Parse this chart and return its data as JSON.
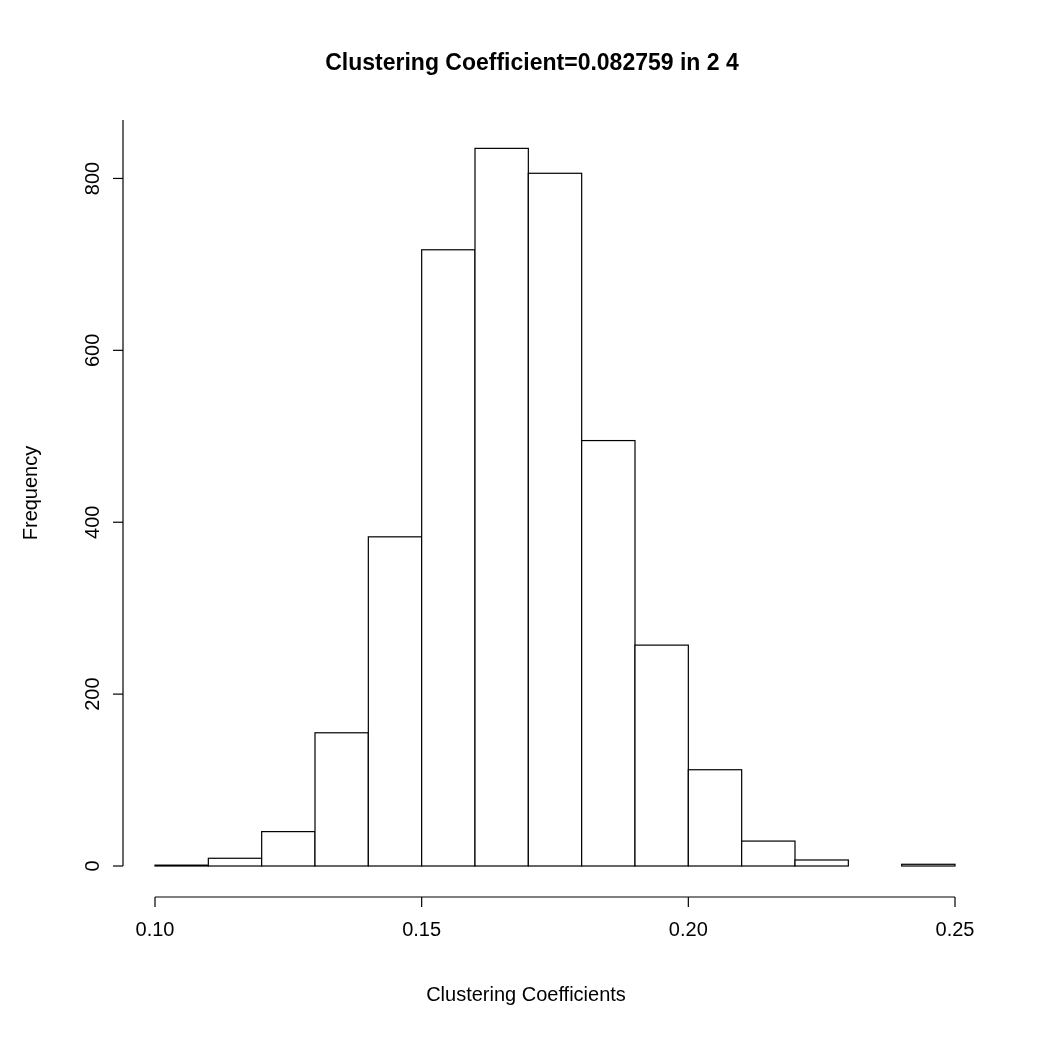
{
  "chart_data": {
    "type": "histogram",
    "title": "Clustering Coefficient=0.082759 in 2 4",
    "xlabel": "Clustering Coefficients",
    "ylabel": "Frequency",
    "bins": [
      0.1,
      0.11,
      0.12,
      0.13,
      0.14,
      0.15,
      0.16,
      0.17,
      0.18,
      0.19,
      0.2,
      0.21,
      0.22,
      0.23,
      0.24,
      0.25
    ],
    "values": [
      1,
      9,
      40,
      155,
      383,
      717,
      835,
      806,
      495,
      257,
      112,
      29,
      7,
      0,
      2
    ],
    "color": "#ffffff",
    "xlim": [
      0.1,
      0.25
    ],
    "xticks": [
      {
        "value": 0.1,
        "label": "0.10"
      },
      0.15,
      {
        "value": 0.2,
        "label": "0.20"
      },
      0.25
    ],
    "ylim": [
      0,
      868
    ],
    "yticks": [
      0,
      200,
      400,
      600,
      800
    ],
    "grid": false
  }
}
